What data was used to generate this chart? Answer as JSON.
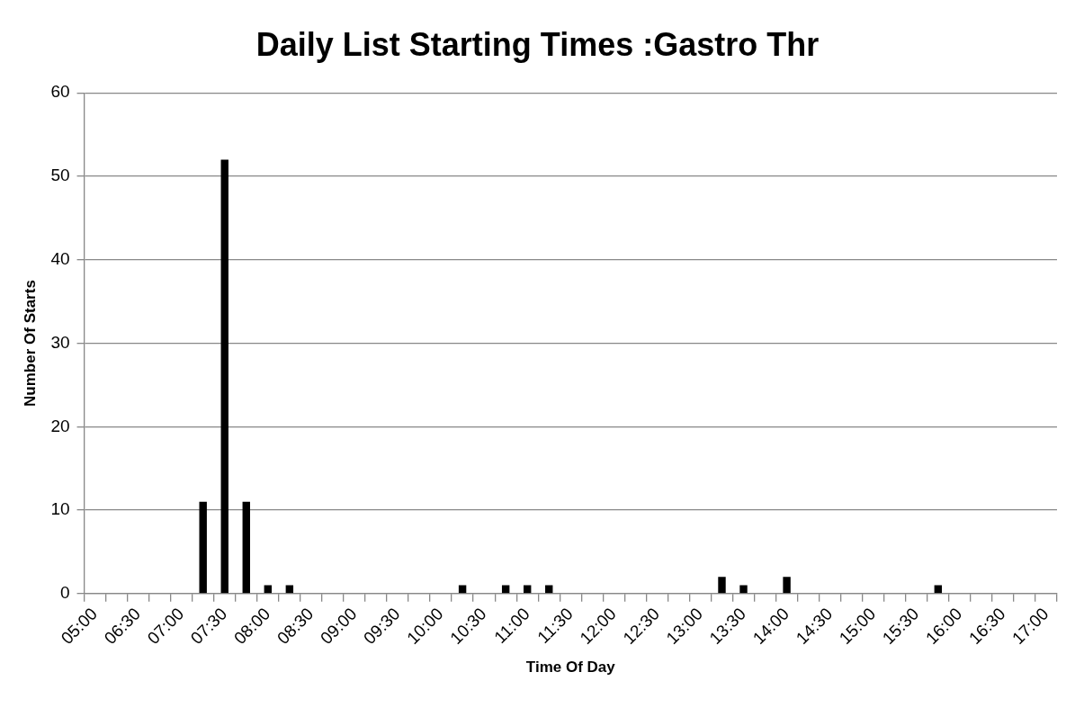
{
  "chart_data": {
    "type": "bar",
    "title": "Daily List Starting Times :Gastro Thr",
    "xlabel": "Time Of Day",
    "ylabel": "Number Of Starts",
    "categories": [
      "05:00",
      null,
      "06:30",
      null,
      "07:00",
      null,
      "07:30",
      null,
      "08:00",
      null,
      "08:30",
      null,
      "09:00",
      null,
      "09:30",
      null,
      "10:00",
      null,
      "10:30",
      null,
      "11:00",
      null,
      "11:30",
      null,
      "12:00",
      null,
      "12:30",
      null,
      "13:00",
      null,
      "13:30",
      null,
      "14:00",
      null,
      "14:30",
      null,
      "15:00",
      null,
      "15:30",
      null,
      "16:00",
      null,
      "16:30",
      null,
      "17:00"
    ],
    "values": [
      0,
      0,
      0,
      0,
      0,
      11,
      52,
      11,
      1,
      1,
      0,
      0,
      0,
      0,
      0,
      0,
      0,
      1,
      0,
      1,
      1,
      1,
      0,
      0,
      0,
      0,
      0,
      0,
      0,
      2,
      1,
      0,
      2,
      0,
      0,
      0,
      0,
      0,
      0,
      1,
      0,
      0,
      0,
      0,
      0
    ],
    "color": "#000000",
    "ylim": [
      0,
      60
    ],
    "yticks": [
      0,
      10,
      20,
      30,
      40,
      50,
      60
    ],
    "grid": "y",
    "legend": false
  }
}
